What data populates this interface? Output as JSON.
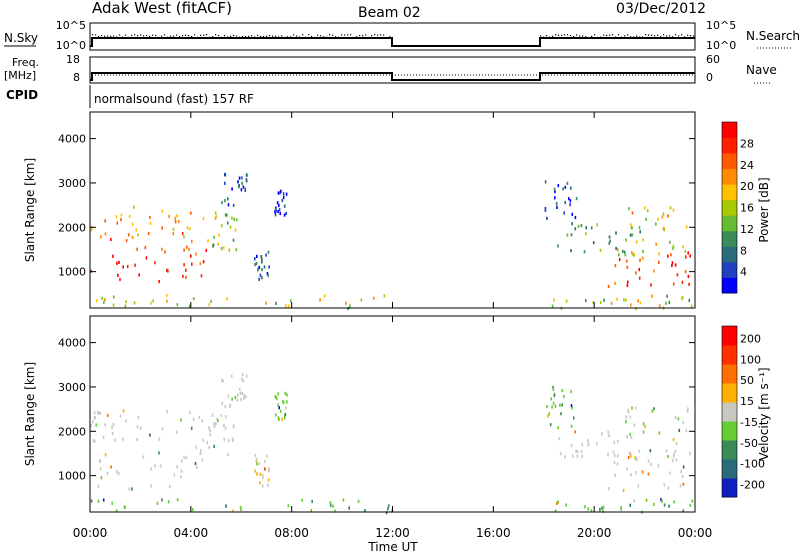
{
  "header": {
    "radar": "Adak West (fitACF)",
    "beam": "Beam 02",
    "date": "03/Dec/2012"
  },
  "panels": {
    "nsky_label": "N.Sky",
    "nsky_ticks": [
      "10^5",
      "10^0"
    ],
    "nsearch_label": "N.Search",
    "nsearch_ticks": [
      "10^5",
      "10^0"
    ],
    "freq_label": "Freq.",
    "freq_unit": "[MHz]",
    "freq_ticks": [
      "18",
      "8"
    ],
    "nave_label": "Nave",
    "nave_ticks": [
      "60",
      "0"
    ],
    "cpid_label": "CPID",
    "cpid_text": "normalsound (fast) 157 RF"
  },
  "chart_data": [
    {
      "type": "heatmap",
      "quantity": "Power",
      "xlabel": "Time UT",
      "ylabel": "Slant Range [km]",
      "colorbar_label": "Power [dB]",
      "xlim": [
        "00:00",
        "24:00"
      ],
      "ylim": [
        180,
        4600
      ],
      "yticks": [
        "1000",
        "2000",
        "3000",
        "4000"
      ],
      "colorbar_ticks": [
        "4",
        "8",
        "12",
        "16",
        "20",
        "24",
        "28"
      ],
      "colorscale": [
        "#0000ff",
        "#2140c0",
        "#2a6a7a",
        "#3a8a5a",
        "#66bb33",
        "#a8c800",
        "#ffc000",
        "#ff8c00",
        "#ff5a00",
        "#ff2000",
        "#ff0000"
      ],
      "data_gaps": [
        [
          "12:00",
          "18:00"
        ]
      ],
      "regions": [
        {
          "t": [
            0.0,
            4.6
          ],
          "r": [
            700,
            1900
          ],
          "level": 0.85
        },
        {
          "t": [
            0.0,
            4.8
          ],
          "r": [
            1800,
            2500
          ],
          "level": 0.62
        },
        {
          "t": [
            4.6,
            5.8
          ],
          "r": [
            1500,
            2400
          ],
          "level": 0.45
        },
        {
          "t": [
            5.2,
            6.2
          ],
          "r": [
            2500,
            3400
          ],
          "level": 0.15
        },
        {
          "t": [
            7.3,
            7.8
          ],
          "r": [
            2300,
            2900
          ],
          "level": 0.1
        },
        {
          "t": [
            6.5,
            7.1
          ],
          "r": [
            800,
            1500
          ],
          "level": 0.2
        },
        {
          "t": [
            18.0,
            19.3
          ],
          "r": [
            2100,
            3100
          ],
          "level": 0.2
        },
        {
          "t": [
            18.5,
            21.8
          ],
          "r": [
            1400,
            2100
          ],
          "level": 0.3
        },
        {
          "t": [
            20.5,
            24.0
          ],
          "r": [
            700,
            1600
          ],
          "level": 0.82
        },
        {
          "t": [
            21.2,
            23.8
          ],
          "r": [
            1400,
            2600
          ],
          "level": 0.6
        },
        {
          "t": [
            0.0,
            12.0
          ],
          "r": [
            200,
            500
          ],
          "level": 0.5
        },
        {
          "t": [
            18.0,
            24.0
          ],
          "r": [
            200,
            500
          ],
          "level": 0.5
        }
      ]
    },
    {
      "type": "heatmap",
      "quantity": "Velocity",
      "xlabel": "Time UT",
      "ylabel": "Slant Range [km]",
      "colorbar_label": "Velocity [m s⁻¹]",
      "xlim": [
        "00:00",
        "24:00"
      ],
      "ylim": [
        180,
        4600
      ],
      "yticks": [
        "1000",
        "2000",
        "3000",
        "4000"
      ],
      "xticks": [
        "00:00",
        "04:00",
        "08:00",
        "12:00",
        "16:00",
        "20:00",
        "00:00"
      ],
      "colorbar_ticks": [
        "200",
        "100",
        "50",
        "15",
        "-15",
        "-50",
        "-100",
        "-200"
      ],
      "colorscale": [
        "#1020c0",
        "#2a6a7a",
        "#3a8a5a",
        "#66cc33",
        "#c8c8c0",
        "#ffb000",
        "#ff7000",
        "#ff3000",
        "#ff0000"
      ],
      "data_gaps": [
        [
          "12:00",
          "18:00"
        ]
      ],
      "regions": [
        {
          "t": [
            0.0,
            4.6
          ],
          "r": [
            700,
            1900
          ],
          "level": 0.5
        },
        {
          "t": [
            0.0,
            4.8
          ],
          "r": [
            1800,
            2500
          ],
          "level": 0.5
        },
        {
          "t": [
            4.6,
            5.8
          ],
          "r": [
            1500,
            2400
          ],
          "level": 0.5
        },
        {
          "t": [
            5.2,
            6.2
          ],
          "r": [
            2500,
            3400
          ],
          "level": 0.5
        },
        {
          "t": [
            7.3,
            7.8
          ],
          "r": [
            2300,
            2900
          ],
          "level": 0.4
        },
        {
          "t": [
            6.5,
            7.1
          ],
          "r": [
            800,
            1500
          ],
          "level": 0.55
        },
        {
          "t": [
            18.0,
            19.3
          ],
          "r": [
            2100,
            3100
          ],
          "level": 0.35
        },
        {
          "t": [
            18.5,
            21.8
          ],
          "r": [
            1400,
            2100
          ],
          "level": 0.5
        },
        {
          "t": [
            20.5,
            24.0
          ],
          "r": [
            700,
            1600
          ],
          "level": 0.5
        },
        {
          "t": [
            21.2,
            23.8
          ],
          "r": [
            1400,
            2600
          ],
          "level": 0.45
        },
        {
          "t": [
            0.0,
            12.0
          ],
          "r": [
            200,
            500
          ],
          "level": 0.35
        },
        {
          "t": [
            18.0,
            24.0
          ],
          "r": [
            200,
            500
          ],
          "level": 0.35
        }
      ]
    }
  ]
}
